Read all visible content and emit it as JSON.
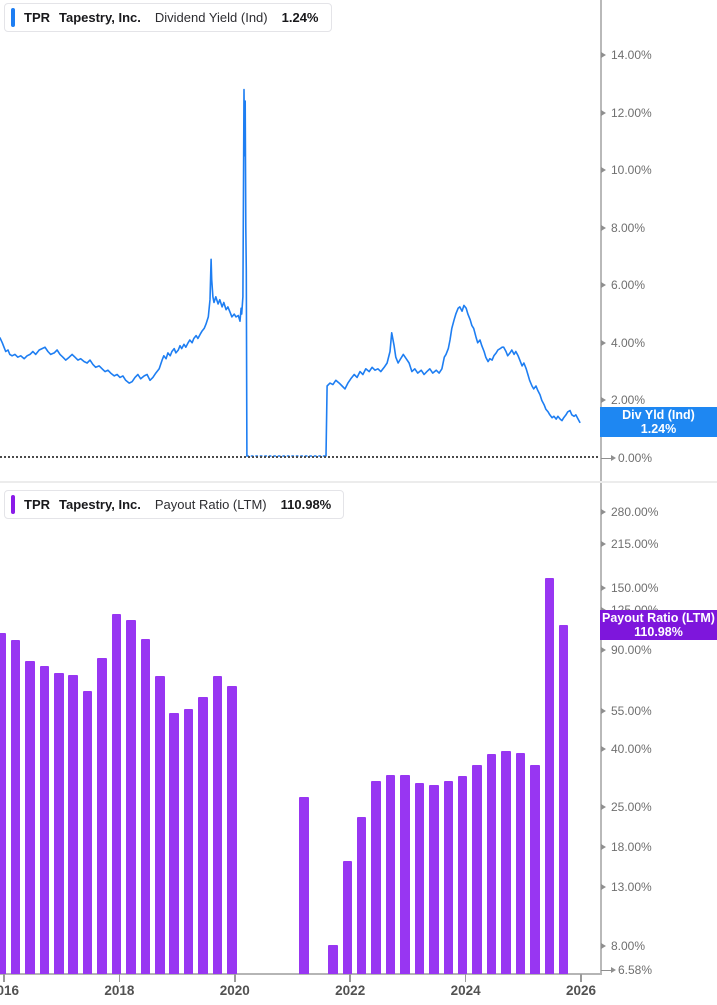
{
  "panels": {
    "dividend_yield": {
      "legend": {
        "ticker": "TPR",
        "company": "Tapestry, Inc.",
        "metric": "Dividend Yield (Ind)",
        "value": "1.24%"
      },
      "value_badge": {
        "title": "Div Yld (Ind)",
        "value": "1.24%"
      },
      "accent_color": "#1e7ef2",
      "badge_color": "#1e87f2"
    },
    "payout_ratio": {
      "legend": {
        "ticker": "TPR",
        "company": "Tapestry, Inc.",
        "metric": "Payout Ratio (LTM)",
        "value": "110.98%"
      },
      "value_badge": {
        "title": "Payout Ratio (LTM)",
        "value": "110.98%"
      },
      "accent_color": "#8a1be8",
      "badge_color": "#7e16dc"
    }
  },
  "x_axis": {
    "ticks": [
      {
        "year": 2016,
        "label": "2016"
      },
      {
        "year": 2018,
        "label": "2018"
      },
      {
        "year": 2020,
        "label": "2020"
      },
      {
        "year": 2022,
        "label": "2022"
      },
      {
        "year": 2024,
        "label": "2024"
      },
      {
        "year": 2026,
        "label": "2026"
      }
    ]
  },
  "chart_data": [
    {
      "type": "line",
      "title": "TPR Tapestry, Inc. Dividend Yield (Ind)",
      "series_name": "Div Yld (Ind)",
      "unit": "%",
      "color": "#1e7ef2",
      "current_value": 1.24,
      "legend_position": "top-left",
      "grid": "zero-line-only",
      "y_axis": {
        "scale": "linear",
        "range": [
          0,
          14.8
        ],
        "ticks": [
          {
            "v": 14,
            "label": "14.00%"
          },
          {
            "v": 12,
            "label": "12.00%"
          },
          {
            "v": 10,
            "label": "10.00%"
          },
          {
            "v": 8,
            "label": "8.00%"
          },
          {
            "v": 6,
            "label": "6.00%"
          },
          {
            "v": 4,
            "label": "4.00%"
          },
          {
            "v": 2,
            "label": "2.00%"
          },
          {
            "v": 0,
            "label": "0.00%",
            "long_arrow": true
          }
        ]
      },
      "x_range": [
        2015.93,
        2025.98
      ],
      "points": [
        [
          2015.93,
          4.17
        ],
        [
          2015.97,
          4.0
        ],
        [
          2016.0,
          3.85
        ],
        [
          2016.03,
          3.7
        ],
        [
          2016.07,
          3.75
        ],
        [
          2016.1,
          3.6
        ],
        [
          2016.14,
          3.55
        ],
        [
          2016.19,
          3.6
        ],
        [
          2016.24,
          3.5
        ],
        [
          2016.29,
          3.55
        ],
        [
          2016.35,
          3.45
        ],
        [
          2016.4,
          3.55
        ],
        [
          2016.45,
          3.6
        ],
        [
          2016.5,
          3.7
        ],
        [
          2016.55,
          3.6
        ],
        [
          2016.61,
          3.75
        ],
        [
          2016.66,
          3.8
        ],
        [
          2016.71,
          3.85
        ],
        [
          2016.76,
          3.7
        ],
        [
          2016.81,
          3.6
        ],
        [
          2016.87,
          3.65
        ],
        [
          2016.92,
          3.75
        ],
        [
          2016.97,
          3.6
        ],
        [
          2017.02,
          3.5
        ],
        [
          2017.07,
          3.4
        ],
        [
          2017.13,
          3.5
        ],
        [
          2017.18,
          3.6
        ],
        [
          2017.23,
          3.5
        ],
        [
          2017.28,
          3.4
        ],
        [
          2017.33,
          3.45
        ],
        [
          2017.39,
          3.35
        ],
        [
          2017.44,
          3.3
        ],
        [
          2017.49,
          3.4
        ],
        [
          2017.54,
          3.25
        ],
        [
          2017.59,
          3.15
        ],
        [
          2017.65,
          3.2
        ],
        [
          2017.7,
          3.1
        ],
        [
          2017.75,
          3.0
        ],
        [
          2017.8,
          3.05
        ],
        [
          2017.85,
          2.95
        ],
        [
          2017.91,
          2.85
        ],
        [
          2017.96,
          2.9
        ],
        [
          2018.01,
          2.8
        ],
        [
          2018.06,
          2.85
        ],
        [
          2018.11,
          2.7
        ],
        [
          2018.17,
          2.6
        ],
        [
          2018.22,
          2.65
        ],
        [
          2018.27,
          2.8
        ],
        [
          2018.32,
          2.9
        ],
        [
          2018.37,
          2.75
        ],
        [
          2018.43,
          2.85
        ],
        [
          2018.48,
          2.9
        ],
        [
          2018.53,
          2.7
        ],
        [
          2018.58,
          2.8
        ],
        [
          2018.63,
          2.95
        ],
        [
          2018.69,
          3.1
        ],
        [
          2018.74,
          3.4
        ],
        [
          2018.77,
          3.55
        ],
        [
          2018.81,
          3.45
        ],
        [
          2018.84,
          3.65
        ],
        [
          2018.88,
          3.55
        ],
        [
          2018.91,
          3.7
        ],
        [
          2018.95,
          3.8
        ],
        [
          2018.98,
          3.65
        ],
        [
          2019.02,
          3.75
        ],
        [
          2019.05,
          3.9
        ],
        [
          2019.08,
          3.8
        ],
        [
          2019.12,
          3.95
        ],
        [
          2019.15,
          3.85
        ],
        [
          2019.19,
          4.0
        ],
        [
          2019.22,
          4.1
        ],
        [
          2019.26,
          4.0
        ],
        [
          2019.29,
          4.15
        ],
        [
          2019.33,
          4.25
        ],
        [
          2019.36,
          4.15
        ],
        [
          2019.4,
          4.3
        ],
        [
          2019.43,
          4.4
        ],
        [
          2019.47,
          4.5
        ],
        [
          2019.5,
          4.65
        ],
        [
          2019.54,
          4.9
        ],
        [
          2019.57,
          5.5
        ],
        [
          2019.59,
          6.9
        ],
        [
          2019.6,
          6.2
        ],
        [
          2019.62,
          5.6
        ],
        [
          2019.64,
          5.4
        ],
        [
          2019.67,
          5.6
        ],
        [
          2019.71,
          5.35
        ],
        [
          2019.74,
          5.5
        ],
        [
          2019.78,
          5.25
        ],
        [
          2019.81,
          5.4
        ],
        [
          2019.85,
          5.15
        ],
        [
          2019.88,
          5.25
        ],
        [
          2019.92,
          5.05
        ],
        [
          2019.95,
          4.9
        ],
        [
          2019.99,
          5.0
        ],
        [
          2020.02,
          4.9
        ],
        [
          2020.06,
          4.95
        ],
        [
          2020.09,
          4.75
        ],
        [
          2020.11,
          5.2
        ],
        [
          2020.12,
          5.0
        ],
        [
          2020.14,
          5.6
        ],
        [
          2020.16,
          12.8
        ],
        [
          2020.17,
          10.5
        ],
        [
          2020.18,
          12.4
        ],
        [
          2020.19,
          8.0
        ],
        [
          2020.2,
          6.5
        ],
        [
          2020.21,
          0.07
        ],
        [
          2020.44,
          0.07
        ],
        [
          2020.78,
          0.07
        ],
        [
          2021.13,
          0.07
        ],
        [
          2021.48,
          0.07
        ],
        [
          2021.58,
          0.07
        ],
        [
          2021.6,
          2.5
        ],
        [
          2021.65,
          2.6
        ],
        [
          2021.7,
          2.55
        ],
        [
          2021.75,
          2.7
        ],
        [
          2021.81,
          2.6
        ],
        [
          2021.86,
          2.5
        ],
        [
          2021.91,
          2.4
        ],
        [
          2021.96,
          2.6
        ],
        [
          2022.01,
          2.75
        ],
        [
          2022.07,
          2.9
        ],
        [
          2022.12,
          2.8
        ],
        [
          2022.17,
          3.0
        ],
        [
          2022.22,
          2.9
        ],
        [
          2022.27,
          3.1
        ],
        [
          2022.33,
          3.0
        ],
        [
          2022.38,
          3.15
        ],
        [
          2022.43,
          3.05
        ],
        [
          2022.48,
          3.1
        ],
        [
          2022.53,
          3.0
        ],
        [
          2022.59,
          3.15
        ],
        [
          2022.64,
          3.3
        ],
        [
          2022.69,
          3.7
        ],
        [
          2022.72,
          4.35
        ],
        [
          2022.76,
          3.9
        ],
        [
          2022.79,
          3.5
        ],
        [
          2022.83,
          3.3
        ],
        [
          2022.86,
          3.4
        ],
        [
          2022.92,
          3.6
        ],
        [
          2022.97,
          3.45
        ],
        [
          2023.02,
          3.3
        ],
        [
          2023.07,
          3.0
        ],
        [
          2023.12,
          3.1
        ],
        [
          2023.17,
          2.95
        ],
        [
          2023.23,
          3.05
        ],
        [
          2023.28,
          2.9
        ],
        [
          2023.33,
          3.0
        ],
        [
          2023.38,
          3.1
        ],
        [
          2023.43,
          2.95
        ],
        [
          2023.49,
          3.05
        ],
        [
          2023.54,
          2.95
        ],
        [
          2023.59,
          3.1
        ],
        [
          2023.63,
          3.5
        ],
        [
          2023.66,
          3.6
        ],
        [
          2023.7,
          3.8
        ],
        [
          2023.73,
          4.1
        ],
        [
          2023.76,
          4.5
        ],
        [
          2023.8,
          4.8
        ],
        [
          2023.83,
          5.0
        ],
        [
          2023.87,
          5.2
        ],
        [
          2023.9,
          5.25
        ],
        [
          2023.94,
          5.1
        ],
        [
          2023.97,
          5.3
        ],
        [
          2024.01,
          5.2
        ],
        [
          2024.04,
          5.0
        ],
        [
          2024.08,
          4.8
        ],
        [
          2024.11,
          4.6
        ],
        [
          2024.14,
          4.5
        ],
        [
          2024.18,
          4.2
        ],
        [
          2024.21,
          4.0
        ],
        [
          2024.25,
          4.1
        ],
        [
          2024.28,
          3.9
        ],
        [
          2024.32,
          3.7
        ],
        [
          2024.35,
          3.5
        ],
        [
          2024.39,
          3.35
        ],
        [
          2024.42,
          3.45
        ],
        [
          2024.46,
          3.4
        ],
        [
          2024.49,
          3.55
        ],
        [
          2024.53,
          3.65
        ],
        [
          2024.56,
          3.75
        ],
        [
          2024.6,
          3.8
        ],
        [
          2024.63,
          3.85
        ],
        [
          2024.66,
          3.85
        ],
        [
          2024.7,
          3.7
        ],
        [
          2024.73,
          3.55
        ],
        [
          2024.77,
          3.65
        ],
        [
          2024.8,
          3.75
        ],
        [
          2024.84,
          3.6
        ],
        [
          2024.87,
          3.7
        ],
        [
          2024.91,
          3.55
        ],
        [
          2024.94,
          3.4
        ],
        [
          2024.98,
          3.2
        ],
        [
          2025.01,
          3.3
        ],
        [
          2025.05,
          3.1
        ],
        [
          2025.08,
          2.9
        ],
        [
          2025.11,
          2.7
        ],
        [
          2025.15,
          2.5
        ],
        [
          2025.18,
          2.4
        ],
        [
          2025.22,
          2.5
        ],
        [
          2025.25,
          2.35
        ],
        [
          2025.29,
          2.2
        ],
        [
          2025.32,
          2.0
        ],
        [
          2025.36,
          1.85
        ],
        [
          2025.39,
          1.7
        ],
        [
          2025.43,
          1.6
        ],
        [
          2025.46,
          1.5
        ],
        [
          2025.5,
          1.4
        ],
        [
          2025.53,
          1.45
        ],
        [
          2025.57,
          1.35
        ],
        [
          2025.6,
          1.45
        ],
        [
          2025.64,
          1.35
        ],
        [
          2025.67,
          1.3
        ],
        [
          2025.7,
          1.4
        ],
        [
          2025.74,
          1.5
        ],
        [
          2025.77,
          1.6
        ],
        [
          2025.81,
          1.65
        ],
        [
          2025.84,
          1.5
        ],
        [
          2025.88,
          1.45
        ],
        [
          2025.91,
          1.5
        ],
        [
          2025.95,
          1.35
        ],
        [
          2025.98,
          1.24
        ]
      ]
    },
    {
      "type": "bar",
      "title": "TPR Tapestry, Inc. Payout Ratio (LTM)",
      "series_name": "Payout Ratio (LTM)",
      "unit": "%",
      "color": "#9836f2",
      "current_value": 110.98,
      "legend_position": "top-left",
      "grid": "off",
      "y_axis": {
        "scale": "log",
        "range": [
          6.58,
          300
        ],
        "ticks": [
          {
            "v": 280,
            "label": "280.00%"
          },
          {
            "v": 215,
            "label": "215.00%"
          },
          {
            "v": 150,
            "label": "150.00%"
          },
          {
            "v": 125,
            "label": "125.00%"
          },
          {
            "v": 90,
            "label": "90.00%"
          },
          {
            "v": 55,
            "label": "55.00%"
          },
          {
            "v": 40,
            "label": "40.00%"
          },
          {
            "v": 25,
            "label": "25.00%"
          },
          {
            "v": 18,
            "label": "18.00%"
          },
          {
            "v": 13,
            "label": "13.00%"
          },
          {
            "v": 8,
            "label": "8.00%"
          },
          {
            "v": 6.58,
            "label": "6.58%",
            "long_arrow": true
          }
        ]
      },
      "bars": [
        [
          2015.95,
          104
        ],
        [
          2016.2,
          98
        ],
        [
          2016.45,
          82.5
        ],
        [
          2016.7,
          79
        ],
        [
          2016.95,
          74.7
        ],
        [
          2017.2,
          73.5
        ],
        [
          2017.45,
          64.5
        ],
        [
          2017.7,
          84.6
        ],
        [
          2017.95,
          121.4
        ],
        [
          2018.2,
          115.8
        ],
        [
          2018.45,
          98.7
        ],
        [
          2018.7,
          72.7
        ],
        [
          2018.95,
          53.7
        ],
        [
          2019.2,
          55.5
        ],
        [
          2019.45,
          61.3
        ],
        [
          2019.7,
          72.7
        ],
        [
          2019.95,
          67.5
        ],
        [
          2021.2,
          27
        ],
        [
          2021.7,
          8.1
        ],
        [
          2021.95,
          16.1
        ],
        [
          2022.2,
          23
        ],
        [
          2022.45,
          30.8
        ],
        [
          2022.7,
          32.4
        ],
        [
          2022.95,
          32.4
        ],
        [
          2023.2,
          30.5
        ],
        [
          2023.45,
          30
        ],
        [
          2023.7,
          30.9
        ],
        [
          2023.95,
          32.1
        ],
        [
          2024.2,
          35.2
        ],
        [
          2024.45,
          38.7
        ],
        [
          2024.7,
          39.5
        ],
        [
          2024.95,
          38.9
        ],
        [
          2025.2,
          35.1
        ],
        [
          2025.45,
          163
        ],
        [
          2025.7,
          110.98
        ]
      ]
    }
  ]
}
